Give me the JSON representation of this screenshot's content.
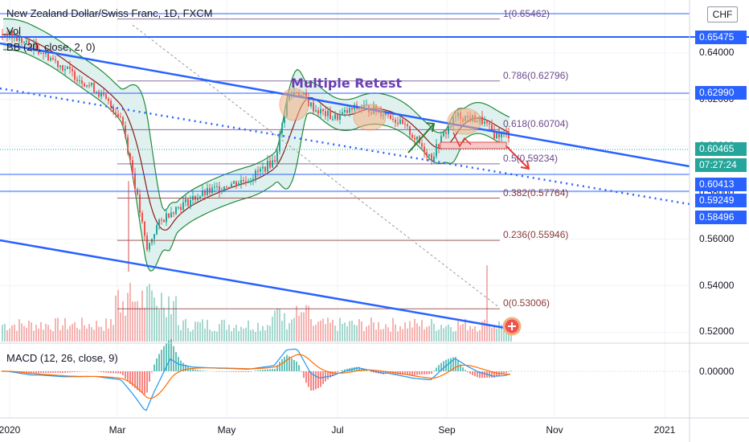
{
  "header": {
    "title": "New Zealand Dollar/Swiss Franc, 1D, FXCM",
    "vol_label": "Vol",
    "bb_label": "BB (20, close, 2, 0)",
    "macd_label": "MACD (12, 26, close, 9)",
    "currency": "CHF"
  },
  "annotation": "Multiple Retest",
  "price_axis": {
    "ticks": [
      "0.64000",
      "0.62000",
      "0.60000",
      "0.58000",
      "0.56000",
      "0.54000",
      "0.52000"
    ],
    "macd_tick": "0.00000",
    "badges": [
      {
        "value": "0.65475",
        "color": "#2962ff"
      },
      {
        "value": "0.62990",
        "color": "#2962ff"
      },
      {
        "value": "0.60465",
        "color": "#26a69a"
      },
      {
        "value": "07:27:24",
        "color": "#26a69a"
      },
      {
        "value": "0.60413",
        "color": "#2962ff"
      },
      {
        "value": "0.59249",
        "color": "#2962ff"
      },
      {
        "value": "0.58496",
        "color": "#2962ff"
      }
    ]
  },
  "time_axis": [
    "2020",
    "Mar",
    "May",
    "Jul",
    "Sep",
    "Nov",
    "2021"
  ],
  "fib_levels": [
    {
      "label": "1(0.65462)",
      "value": 0.65462
    },
    {
      "label": "0.786(0.62796)",
      "value": 0.62796
    },
    {
      "label": "0.618(0.60704)",
      "value": 0.60704
    },
    {
      "label": "0.5(0.59234)",
      "value": 0.59234
    },
    {
      "label": "0.382(0.57764)",
      "value": 0.57764
    },
    {
      "label": "0.236(0.55946)",
      "value": 0.55946
    },
    {
      "label": "0(0.53006)",
      "value": 0.53006
    }
  ],
  "colors": {
    "up": "#26a69a",
    "down": "#ef5350",
    "trend": "#2962ff",
    "bb_fill": "#dff1ee",
    "bb_band": "#208b3a",
    "bb_basis": "#8b1a1a",
    "macd": "#2196f3",
    "signal": "#ff6d00",
    "fib": "#8a5a8a"
  },
  "chart_data": {
    "type": "candlestick",
    "title": "New Zealand Dollar/Swiss Franc, 1D, FXCM",
    "x_range": [
      "2020-01",
      "2021-01"
    ],
    "ylim": [
      0.516,
      0.66
    ],
    "close_path": [
      [
        "2020-01-02",
        0.648
      ],
      [
        "2020-01-20",
        0.641
      ],
      [
        "2020-02-05",
        0.632
      ],
      [
        "2020-02-20",
        0.624
      ],
      [
        "2020-03-05",
        0.612
      ],
      [
        "2020-03-12",
        0.585
      ],
      [
        "2020-03-19",
        0.555
      ],
      [
        "2020-03-24",
        0.565
      ],
      [
        "2020-04-01",
        0.572
      ],
      [
        "2020-04-15",
        0.578
      ],
      [
        "2020-05-01",
        0.583
      ],
      [
        "2020-05-15",
        0.586
      ],
      [
        "2020-05-29",
        0.594
      ],
      [
        "2020-06-05",
        0.62
      ],
      [
        "2020-06-10",
        0.624
      ],
      [
        "2020-06-20",
        0.616
      ],
      [
        "2020-07-01",
        0.612
      ],
      [
        "2020-07-15",
        0.617
      ],
      [
        "2020-07-31",
        0.614
      ],
      [
        "2020-08-12",
        0.606
      ],
      [
        "2020-08-24",
        0.595
      ],
      [
        "2020-08-31",
        0.605
      ],
      [
        "2020-09-07",
        0.613
      ],
      [
        "2020-09-21",
        0.611
      ],
      [
        "2020-09-28",
        0.605
      ]
    ],
    "volume_relative": "bars scaled to pane height"
  }
}
